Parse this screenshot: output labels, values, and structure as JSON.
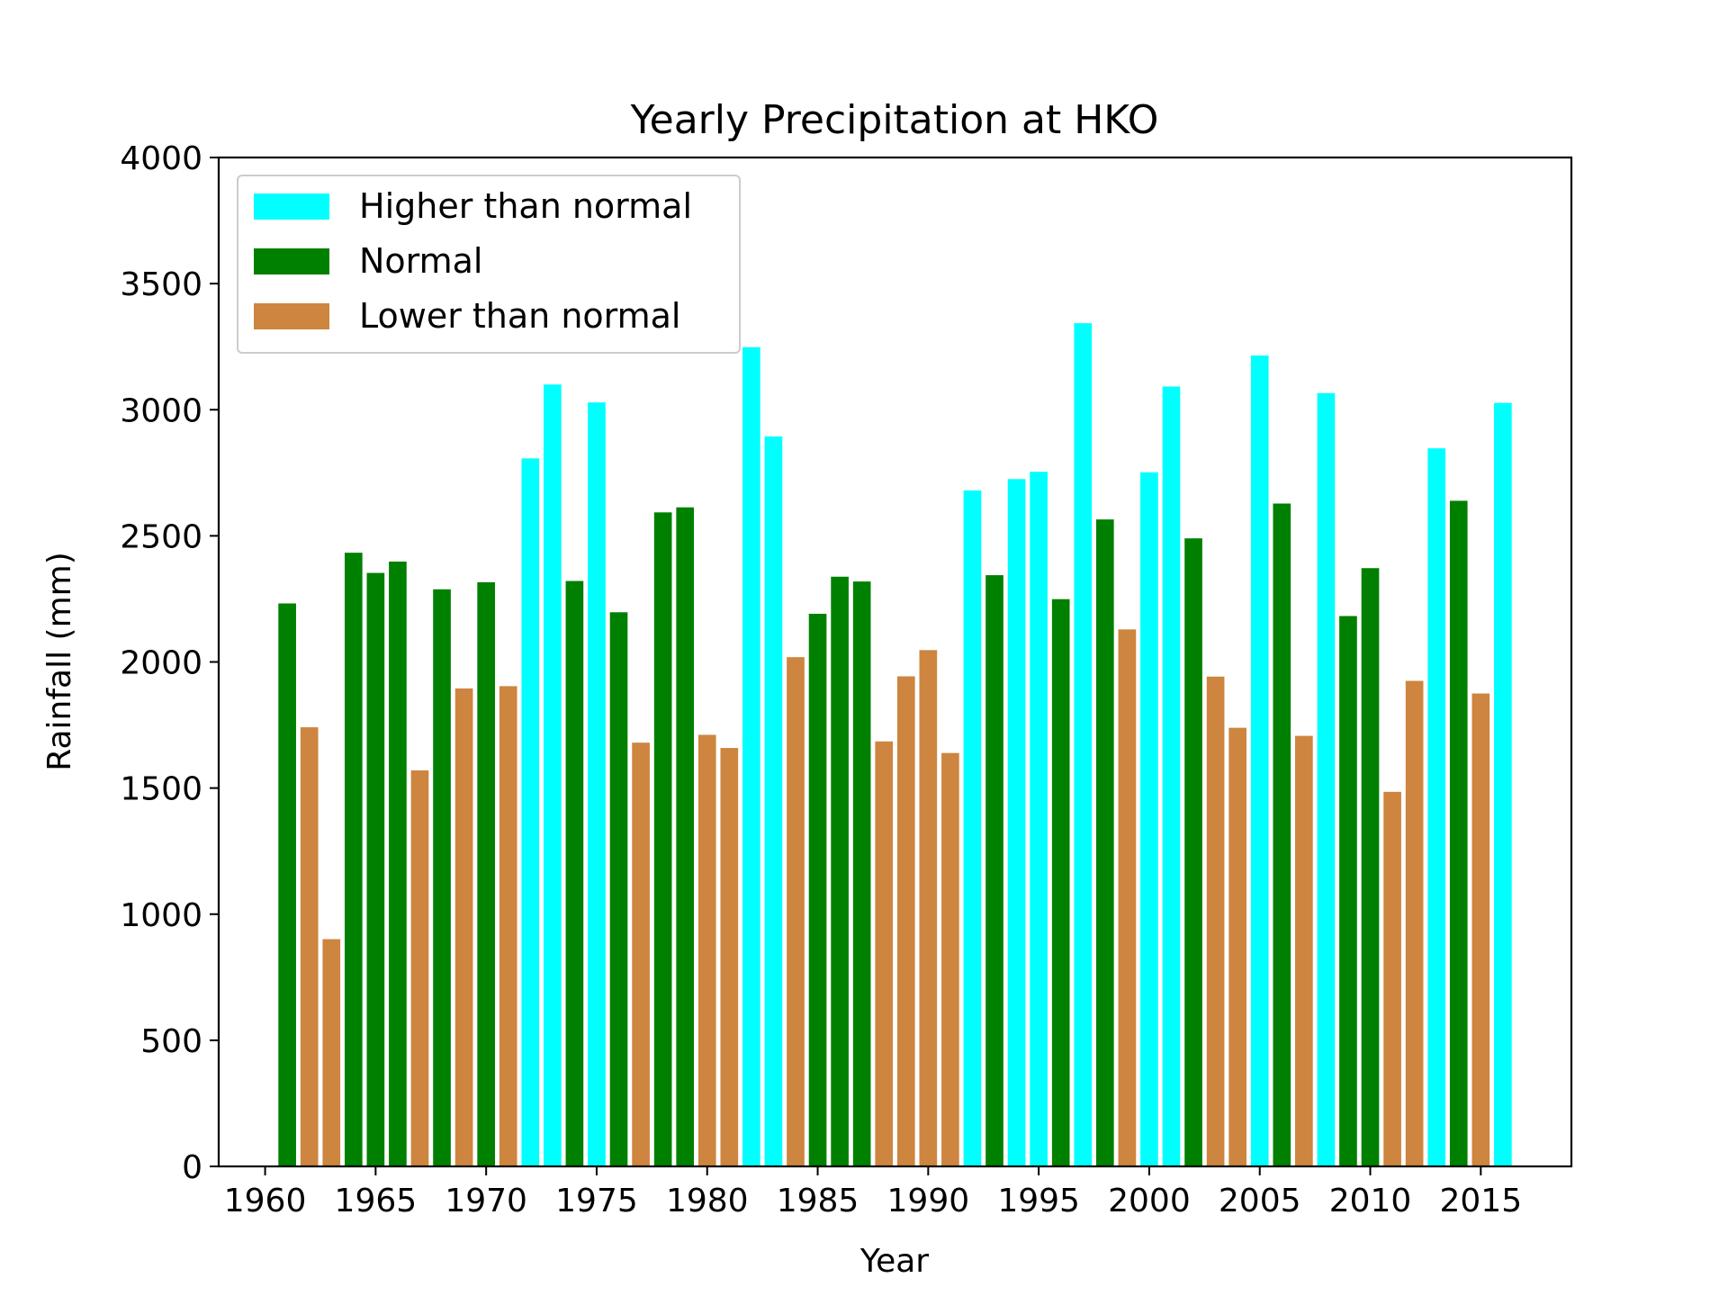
{
  "chart_data": {
    "type": "bar",
    "title": "Yearly Precipitation at HKO",
    "xlabel": "Year",
    "ylabel": "Rainfall (mm)",
    "xlim": [
      1957.9,
      2019.1
    ],
    "ylim": [
      0,
      4000
    ],
    "xticks": [
      1960,
      1965,
      1970,
      1975,
      1980,
      1985,
      1990,
      1995,
      2000,
      2005,
      2010,
      2015
    ],
    "yticks": [
      0,
      500,
      1000,
      1500,
      2000,
      2500,
      3000,
      3500,
      4000
    ],
    "grid": false,
    "legend_position": "upper-left",
    "legend": [
      {
        "label": "Higher than normal",
        "color": "#00ffff"
      },
      {
        "label": "Normal",
        "color": "#008000"
      },
      {
        "label": "Lower than normal",
        "color": "#cd853f"
      }
    ],
    "colors": {
      "Higher": "#00ffff",
      "Normal": "#008000",
      "Lower": "#cd853f"
    },
    "years": [
      1961,
      1962,
      1963,
      1964,
      1965,
      1966,
      1967,
      1968,
      1969,
      1970,
      1971,
      1972,
      1973,
      1974,
      1975,
      1976,
      1977,
      1978,
      1979,
      1980,
      1981,
      1982,
      1983,
      1984,
      1985,
      1986,
      1987,
      1988,
      1989,
      1990,
      1991,
      1992,
      1993,
      1994,
      1995,
      1996,
      1997,
      1998,
      1999,
      2000,
      2001,
      2002,
      2003,
      2004,
      2005,
      2006,
      2007,
      2008,
      2009,
      2010,
      2011,
      2012,
      2013,
      2014,
      2015,
      2016
    ],
    "values": [
      2232,
      1741,
      901,
      2433,
      2353,
      2398,
      1570,
      2288,
      1895,
      2316,
      1904,
      2807,
      3100,
      2321,
      3029,
      2197,
      1680,
      2593,
      2613,
      1711,
      1659,
      3248,
      2894,
      2019,
      2191,
      2338,
      2319,
      1685,
      1943,
      2047,
      1639,
      2680,
      2344,
      2725,
      2754,
      2249,
      3343,
      2565,
      2129,
      2752,
      3092,
      2490,
      1942,
      1739,
      3215,
      2628,
      1707,
      3066,
      2182,
      2372,
      1485,
      1925,
      2847,
      2639,
      1875,
      3027
    ],
    "categories": [
      "Normal",
      "Lower",
      "Lower",
      "Normal",
      "Normal",
      "Normal",
      "Lower",
      "Normal",
      "Lower",
      "Normal",
      "Lower",
      "Higher",
      "Higher",
      "Normal",
      "Higher",
      "Normal",
      "Lower",
      "Normal",
      "Normal",
      "Lower",
      "Lower",
      "Higher",
      "Higher",
      "Lower",
      "Normal",
      "Normal",
      "Normal",
      "Lower",
      "Lower",
      "Lower",
      "Lower",
      "Higher",
      "Normal",
      "Higher",
      "Higher",
      "Normal",
      "Higher",
      "Normal",
      "Lower",
      "Higher",
      "Higher",
      "Normal",
      "Lower",
      "Lower",
      "Higher",
      "Normal",
      "Lower",
      "Higher",
      "Normal",
      "Normal",
      "Lower",
      "Lower",
      "Higher",
      "Normal",
      "Lower",
      "Higher"
    ]
  }
}
